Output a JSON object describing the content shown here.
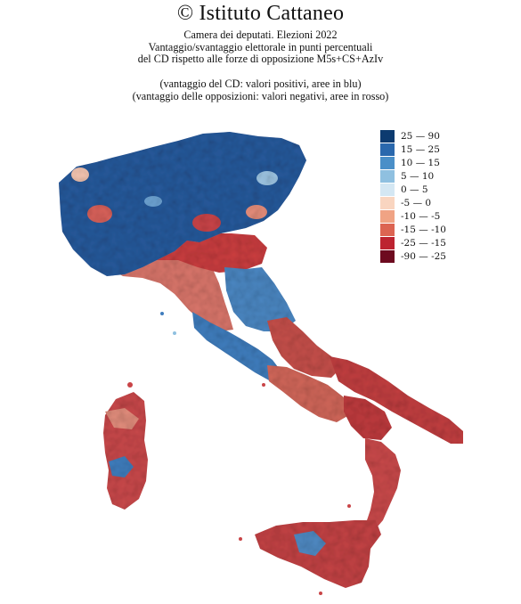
{
  "title": "© Istituto Cattaneo",
  "subtitle": [
    "Camera dei deputati. Elezioni 2022",
    "Vantaggio/svantaggio elettorale in punti percentuali",
    "del CD rispetto alle forze di opposizione M5s+CS+AzIv"
  ],
  "note": [
    "(vantaggio del CD: valori positivi, aree in blu)",
    "(vantaggio delle opposizioni: valori negativi, aree in rosso)"
  ],
  "legend": [
    {
      "label": "25 — 90",
      "color": "#0d3b70"
    },
    {
      "label": "15 — 25",
      "color": "#2a68ad"
    },
    {
      "label": "10 — 15",
      "color": "#4a8fc8"
    },
    {
      "label": "5 — 10",
      "color": "#8fc0e0"
    },
    {
      "label": "0 — 5",
      "color": "#d4e7f3"
    },
    {
      "label": "-5 — 0",
      "color": "#f9d5c0"
    },
    {
      "label": "-10 — -5",
      "color": "#f0a384"
    },
    {
      "label": "-15 — -10",
      "color": "#dc6452"
    },
    {
      "label": "-25 — -15",
      "color": "#bd2330"
    },
    {
      "label": "-90 — -25",
      "color": "#6d0a1f"
    }
  ]
}
